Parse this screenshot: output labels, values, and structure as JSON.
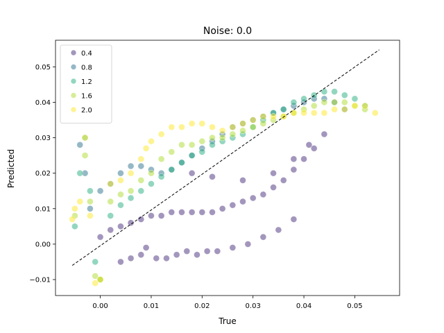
{
  "chart_data": {
    "type": "scatter",
    "title": "Noise: 0.0",
    "xlabel": "True",
    "ylabel": "Predicted",
    "xlim": [
      -0.0088,
      0.0588
    ],
    "ylim": [
      -0.0145,
      0.0575
    ],
    "xticks": [
      {
        "value": 0.0,
        "label": "0.00"
      },
      {
        "value": 0.01,
        "label": "0.01"
      },
      {
        "value": 0.02,
        "label": "0.02"
      },
      {
        "value": 0.03,
        "label": "0.03"
      },
      {
        "value": 0.04,
        "label": "0.04"
      },
      {
        "value": 0.05,
        "label": "0.05"
      }
    ],
    "yticks": [
      {
        "value": -0.01,
        "label": "−0.01"
      },
      {
        "value": 0.0,
        "label": "0.00"
      },
      {
        "value": 0.01,
        "label": "0.01"
      },
      {
        "value": 0.02,
        "label": "0.02"
      },
      {
        "value": 0.03,
        "label": "0.03"
      },
      {
        "value": 0.04,
        "label": "0.04"
      },
      {
        "value": 0.05,
        "label": "0.05"
      }
    ],
    "legend_position": "top-left",
    "grid": false,
    "colormap": "viridis",
    "marker_alpha": 0.5,
    "reference_line": {
      "style": "dashed",
      "color": "#000000",
      "x": [
        -0.0055,
        0.0548
      ],
      "y": [
        -0.006,
        0.0548
      ]
    },
    "series": [
      {
        "name": "0.4",
        "color": "#472d7b",
        "x": [
          0.0,
          0.002,
          0.004,
          0.006,
          0.008,
          0.01,
          0.012,
          0.014,
          0.016,
          0.018,
          0.02,
          0.022,
          0.024,
          0.026,
          0.028,
          0.03,
          0.032,
          0.034,
          0.036,
          0.038,
          0.04,
          0.042,
          0.044,
          0.004,
          0.006,
          0.008,
          0.009,
          0.011,
          0.013,
          0.015,
          0.017,
          0.019,
          0.021,
          0.023,
          0.026,
          0.029,
          0.032,
          0.035,
          0.038,
          0.018,
          0.022,
          0.028,
          0.034,
          0.038,
          0.041
        ],
        "y": [
          0.002,
          0.004,
          0.005,
          0.006,
          0.007,
          0.008,
          0.008,
          0.009,
          0.009,
          0.009,
          0.009,
          0.009,
          0.01,
          0.011,
          0.012,
          0.013,
          0.014,
          0.016,
          0.018,
          0.021,
          0.024,
          0.027,
          0.031,
          -0.005,
          -0.004,
          -0.003,
          -0.001,
          -0.004,
          -0.004,
          -0.003,
          -0.002,
          -0.003,
          -0.002,
          -0.002,
          -0.001,
          0.0,
          0.002,
          0.004,
          0.007,
          0.02,
          0.019,
          0.018,
          0.02,
          0.024,
          0.028
        ]
      },
      {
        "name": "0.8",
        "color": "#2c728e",
        "x": [
          -0.004,
          -0.003,
          -0.002,
          0.0,
          0.002,
          0.004,
          0.006,
          0.008,
          0.01,
          0.012,
          0.014,
          0.016,
          0.018,
          0.02,
          0.022,
          0.024,
          0.026,
          0.028,
          0.03,
          0.032,
          0.034,
          0.036,
          0.038,
          0.04,
          0.042,
          0.044,
          0.046,
          0.048
        ],
        "y": [
          0.028,
          0.02,
          0.01,
          0.015,
          0.017,
          0.02,
          0.022,
          0.022,
          0.021,
          0.02,
          0.021,
          0.023,
          0.025,
          0.027,
          0.029,
          0.031,
          0.033,
          0.034,
          0.035,
          0.036,
          0.037,
          0.038,
          0.039,
          0.04,
          0.041,
          0.041,
          0.04,
          0.038
        ]
      },
      {
        "name": "1.2",
        "color": "#28ae80",
        "x": [
          -0.005,
          -0.004,
          -0.003,
          -0.002,
          -0.001,
          0.0,
          0.002,
          0.004,
          0.006,
          0.008,
          0.01,
          0.012,
          0.014,
          0.016,
          0.018,
          0.02,
          0.022,
          0.024,
          0.026,
          0.028,
          0.03,
          0.032,
          0.034,
          0.036,
          0.038,
          0.04,
          0.042,
          0.044,
          0.046,
          0.048,
          0.05,
          0.052
        ],
        "y": [
          0.005,
          0.02,
          0.03,
          0.015,
          -0.005,
          -0.01,
          0.008,
          0.011,
          0.013,
          0.015,
          0.017,
          0.019,
          0.021,
          0.023,
          0.025,
          0.026,
          0.028,
          0.029,
          0.03,
          0.031,
          0.033,
          0.035,
          0.037,
          0.038,
          0.04,
          0.041,
          0.042,
          0.043,
          0.043,
          0.042,
          0.041,
          0.039
        ]
      },
      {
        "name": "1.6",
        "color": "#addc30",
        "x": [
          -0.005,
          -0.003,
          -0.002,
          -0.001,
          0.0,
          0.002,
          0.004,
          0.006,
          0.008,
          0.01,
          0.012,
          0.014,
          0.016,
          0.018,
          0.02,
          0.022,
          0.024,
          0.026,
          0.028,
          0.03,
          0.032,
          0.034,
          0.036,
          0.038,
          0.04,
          0.042,
          0.044,
          0.046,
          0.048,
          0.05,
          0.052
        ],
        "y": [
          0.008,
          0.025,
          0.012,
          -0.009,
          -0.01,
          0.012,
          0.014,
          0.015,
          0.018,
          0.02,
          0.024,
          0.026,
          0.028,
          0.028,
          0.029,
          0.03,
          0.03,
          0.031,
          0.032,
          0.033,
          0.034,
          0.035,
          0.036,
          0.037,
          0.038,
          0.039,
          0.04,
          0.04,
          0.04,
          0.039,
          0.038
        ]
      },
      {
        "name": "2.0",
        "color": "#fde725",
        "x": [
          -0.0055,
          -0.005,
          -0.004,
          -0.003,
          -0.002,
          -0.001,
          0.0,
          0.002,
          0.004,
          0.006,
          0.008,
          0.009,
          0.01,
          0.012,
          0.014,
          0.016,
          0.018,
          0.02,
          0.022,
          0.024,
          0.026,
          0.028,
          0.03,
          0.032,
          0.034,
          0.036,
          0.038,
          0.04,
          0.042,
          0.044,
          0.046,
          0.048,
          0.05,
          0.052,
          0.054
        ],
        "y": [
          0.007,
          0.01,
          0.012,
          0.03,
          0.008,
          -0.011,
          -0.01,
          0.017,
          0.018,
          0.02,
          0.024,
          0.027,
          0.029,
          0.031,
          0.033,
          0.033,
          0.034,
          0.034,
          0.033,
          0.032,
          0.033,
          0.034,
          0.035,
          0.036,
          0.036,
          0.036,
          0.037,
          0.037,
          0.037,
          0.037,
          0.038,
          0.038,
          0.039,
          0.039,
          0.037
        ]
      }
    ]
  }
}
